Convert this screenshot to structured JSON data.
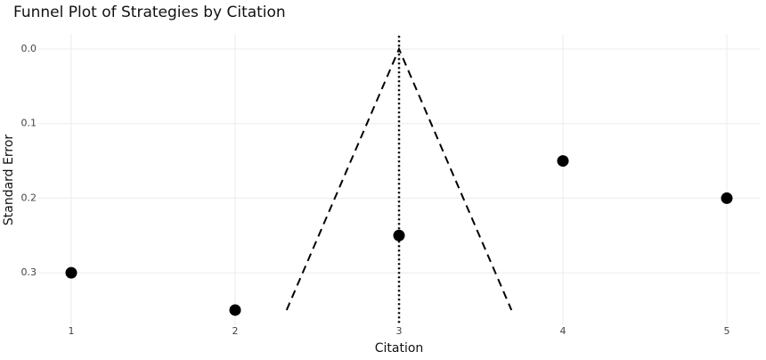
{
  "chart_data": {
    "type": "scatter",
    "title": "Funnel Plot of Strategies by Citation",
    "x_label": "Citation",
    "y_label": "Standard Error",
    "x": [
      1,
      2,
      3,
      4,
      5
    ],
    "values": [
      0.3,
      0.35,
      0.25,
      0.15,
      0.2
    ],
    "color": "#000000",
    "xlim": [
      0.8,
      5.2
    ],
    "xticks": [
      1,
      2,
      3,
      4,
      5
    ],
    "ylim": [
      -0.02,
      0.37
    ],
    "y_reversed": true,
    "yticks": [
      {
        "value": 0,
        "label": "0.0"
      },
      0.1,
      0.2,
      0.3
    ],
    "grid": true,
    "funnel_lines": {
      "x": [
        2.314,
        3,
        3.686
      ],
      "y": [
        0.35,
        0,
        0.35
      ]
    },
    "reference_line": {
      "x": 3
    }
  }
}
